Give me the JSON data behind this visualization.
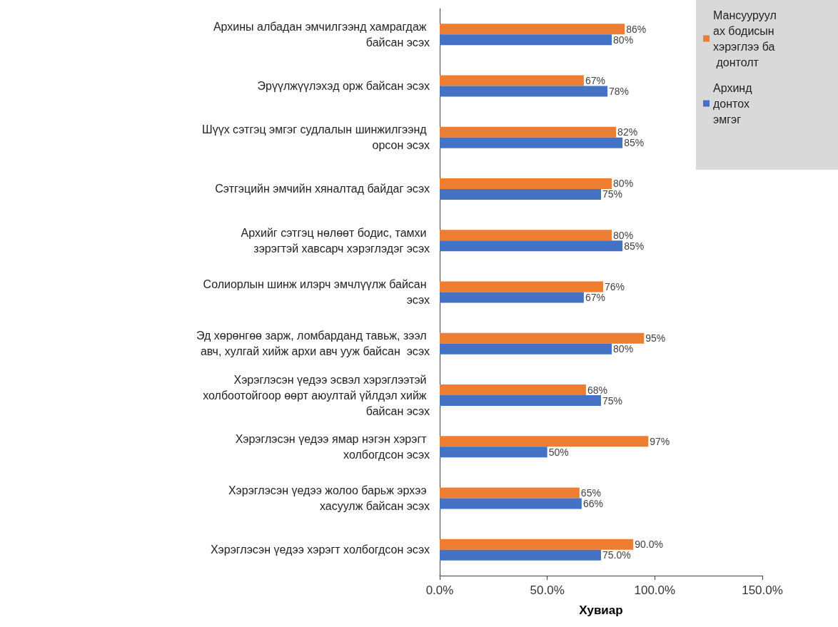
{
  "chart_data": {
    "type": "bar",
    "orientation": "horizontal",
    "xlabel": "Хувиар",
    "categories": [
      "Архины албадан эмчилгээнд хамрагдаж байсан эсэх",
      "Эрүүлжүүлэхэд орж байсан эсэх",
      "Шүүх сэтгэц эмгэг судлалын шинжилгээнд орсон эсэх",
      "Сэтгэцийн эмчийн хяналтад байдаг эсэх",
      "Архийг сэтгэц нөлөөт бодис, тамхи зэрэгтэй хавсарч хэрэглэдэг эсэх",
      "Солиорлын шинж илэрч эмчлүүлж байсан эсэх",
      "Эд хөрөнгөө зарж, ломбарданд тавьж, зээл авч, хулгай хийж архи авч ууж байсан  эсэх",
      "Хэрэглэсэн үедээ эсвэл хэрэглээтэй холбоотойгоор өөрт аюултай үйлдэл хийж байсан эсэх",
      "Хэрэглэсэн үедээ ямар нэгэн хэрэгт холбогдсон эсэх",
      "Хэрэглэсэн үедээ жолоо барьж эрхээ хасуулж байсан эсэх",
      "Хэрэглэсэн үедээ хэрэгт холбогдсон эсэх"
    ],
    "series": [
      {
        "name": "Мансууруулах бодисын хэрэглээ ба донтолт",
        "color": "#ed7d31",
        "values": [
          86,
          67,
          82,
          80,
          80,
          76,
          95,
          68,
          97,
          65,
          90
        ],
        "value_labels": [
          "86%",
          "67%",
          "82%",
          "80%",
          "80%",
          "76%",
          "95%",
          "68%",
          "97%",
          "65%",
          "90.0%"
        ]
      },
      {
        "name": "Архинд донтох эмгэг",
        "color": "#4472c4",
        "values": [
          80,
          78,
          85,
          75,
          85,
          67,
          80,
          75,
          50,
          66,
          75
        ],
        "value_labels": [
          "80%",
          "78%",
          "85%",
          "75%",
          "85%",
          "67%",
          "80%",
          "75%",
          "50%",
          "66%",
          "75.0%"
        ]
      }
    ],
    "xlim": [
      0,
      150
    ],
    "xticks": [
      {
        "value": 0,
        "label": "0.0%"
      },
      {
        "value": 50,
        "label": "50.0%"
      },
      {
        "value": 100,
        "label": "100.0%"
      },
      {
        "value": 150,
        "label": "150.0%"
      }
    ],
    "grid": false,
    "legend": "top right"
  }
}
